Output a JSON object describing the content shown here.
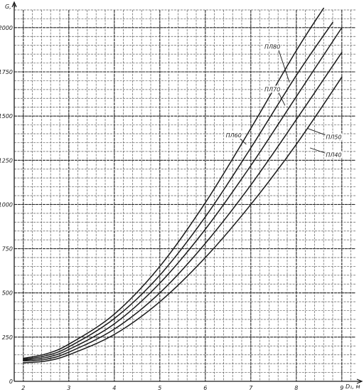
{
  "chart_data": {
    "type": "line",
    "xlabel": "D₁, м",
    "ylabel": "G, т",
    "xlim": [
      1.8,
      9.3
    ],
    "ylim": [
      0,
      2100
    ],
    "x_ticks": [
      "2",
      "3",
      "4",
      "5",
      "6",
      "7",
      "8",
      "9"
    ],
    "y_ticks": [
      "0",
      "250",
      "500",
      "750",
      "1000",
      "1250",
      "1500",
      "1750",
      "2000"
    ],
    "grid": true,
    "colors": {
      "line": "#1a1a1a",
      "grid": "#2a2a2a",
      "paper": "#ffffff"
    },
    "series": [
      {
        "name": "ПЛ80",
        "x": [
          2.0,
          2.5,
          3.0,
          4.0,
          5.0,
          6.0,
          7.0,
          8.0,
          8.6
        ],
        "y": [
          130,
          155,
          210,
          380,
          650,
          1010,
          1430,
          1870,
          2110
        ]
      },
      {
        "name": "ПЛ70",
        "x": [
          2.0,
          2.5,
          3.0,
          4.0,
          5.0,
          6.0,
          7.0,
          8.0,
          8.8
        ],
        "y": [
          125,
          145,
          195,
          355,
          600,
          930,
          1320,
          1730,
          2030
        ]
      },
      {
        "name": "ПЛ60",
        "x": [
          2.0,
          2.5,
          3.0,
          4.0,
          5.0,
          6.0,
          7.0,
          8.0,
          9.0
        ],
        "y": [
          120,
          135,
          180,
          325,
          555,
          860,
          1220,
          1610,
          2000
        ]
      },
      {
        "name": "ПЛ50",
        "x": [
          2.0,
          2.5,
          3.0,
          4.0,
          5.0,
          6.0,
          7.0,
          8.0,
          9.0
        ],
        "y": [
          115,
          125,
          165,
          295,
          500,
          780,
          1110,
          1480,
          1860
        ]
      },
      {
        "name": "ПЛ40",
        "x": [
          2.0,
          2.5,
          3.0,
          4.0,
          5.0,
          6.0,
          7.0,
          8.0,
          9.0
        ],
        "y": [
          105,
          115,
          150,
          265,
          450,
          700,
          1000,
          1340,
          1720
        ]
      }
    ],
    "series_labels": [
      {
        "text": "ПЛ80",
        "x": 7.3,
        "y": 1880,
        "line_to": [
          7.85,
          1690
        ]
      },
      {
        "text": "ПЛ70",
        "x": 7.3,
        "y": 1640,
        "line_to": [
          7.75,
          1560
        ]
      },
      {
        "text": "ПЛ60",
        "x": 6.45,
        "y": 1380,
        "line_to": [
          6.9,
          1340
        ]
      },
      {
        "text": "ПЛ50",
        "x": 8.65,
        "y": 1370,
        "line_to": [
          8.25,
          1430
        ]
      },
      {
        "text": "ПЛ40",
        "x": 8.65,
        "y": 1270,
        "line_to": [
          8.3,
          1320
        ]
      }
    ]
  }
}
